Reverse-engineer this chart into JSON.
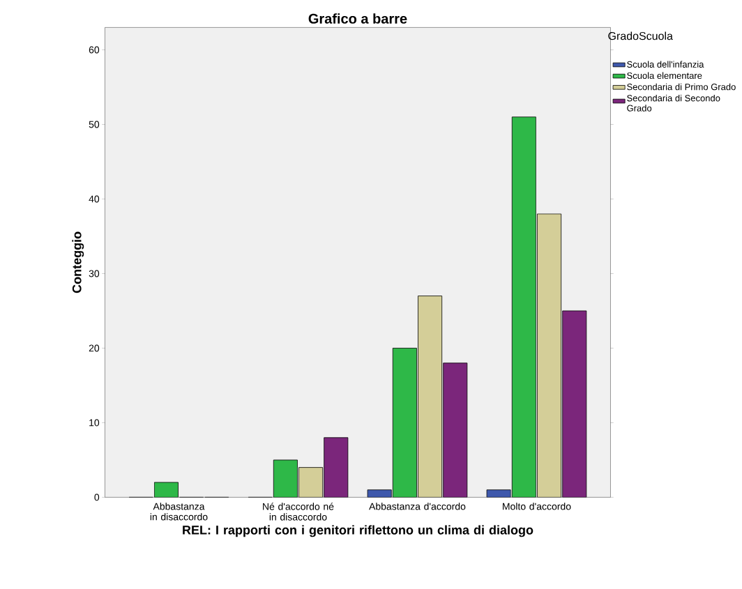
{
  "chart_data": {
    "type": "bar",
    "title": "Grafico a barre",
    "xlabel": "REL: I rapporti con i genitori riflettono un clima di dialogo",
    "ylabel": "Conteggio",
    "legend_title": "GradoScuola",
    "categories": [
      "Abbastanza in disaccordo",
      "Né d'accordo né in disaccordo",
      "Abbastanza d'accordo",
      "Molto d'accordo"
    ],
    "series": [
      {
        "name": "Scuola dell'infanzia",
        "color": "#3e58ac",
        "values": [
          0,
          0,
          1,
          1
        ]
      },
      {
        "name": "Scuola elementare",
        "color": "#2eb848",
        "values": [
          2,
          5,
          20,
          51
        ]
      },
      {
        "name": "Secondaria di Primo Grado",
        "color": "#d4ce98",
        "values": [
          0,
          4,
          27,
          38
        ]
      },
      {
        "name": "Secondaria di Secondo Grado",
        "color": "#7b267b",
        "values": [
          0,
          8,
          18,
          25
        ]
      }
    ],
    "ylim": [
      0,
      63
    ],
    "yticks": [
      0,
      10,
      20,
      30,
      40,
      50,
      60
    ],
    "legend": "top right"
  }
}
